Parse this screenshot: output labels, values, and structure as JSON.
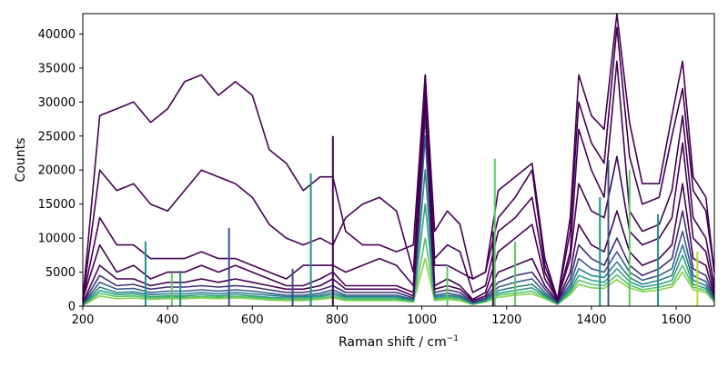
{
  "chart_data": {
    "type": "line",
    "title": "",
    "xlabel": "Raman shift / cm",
    "xlabel_superscript": "−1",
    "ylabel": "Counts",
    "xlim": [
      200,
      1690
    ],
    "ylim": [
      0,
      43000
    ],
    "x_ticks": [
      200,
      400,
      600,
      800,
      1000,
      1200,
      1400,
      1600
    ],
    "y_ticks": [
      0,
      5000,
      10000,
      15000,
      20000,
      25000,
      30000,
      35000,
      40000
    ],
    "grid": false,
    "legend": "none",
    "colormap": "viridis",
    "colors": {
      "dark": "#440154",
      "blue": "#3b528b",
      "teal": "#21918c",
      "green": "#5ec962",
      "yellow": "#b5de2b"
    },
    "x": [
      200,
      240,
      280,
      320,
      360,
      400,
      440,
      480,
      520,
      560,
      600,
      640,
      680,
      720,
      760,
      790,
      820,
      860,
      900,
      940,
      980,
      1008,
      1030,
      1060,
      1090,
      1120,
      1150,
      1180,
      1220,
      1260,
      1290,
      1320,
      1350,
      1370,
      1400,
      1430,
      1460,
      1490,
      1520,
      1560,
      1590,
      1615,
      1640,
      1670,
      1690
    ],
    "series": [
      {
        "values": [
          1000,
          28000,
          29000,
          30000,
          27000,
          29000,
          33000,
          34000,
          31000,
          33000,
          31000,
          23000,
          21000,
          17000,
          19000,
          19000,
          11000,
          9000,
          9000,
          8000,
          9000,
          34000,
          6000,
          6000,
          5000,
          4000,
          5000,
          17000,
          19000,
          21000,
          7000,
          1000,
          13000,
          34000,
          28000,
          26000,
          43000,
          27000,
          18000,
          18000,
          28000,
          36000,
          19000,
          16000,
          5000
        ]
      },
      {
        "values": [
          1000,
          20000,
          17000,
          18000,
          15000,
          14000,
          17000,
          20000,
          19000,
          18000,
          16000,
          12000,
          10000,
          9000,
          10000,
          9000,
          13000,
          15000,
          16000,
          14000,
          5000,
          34000,
          11000,
          14000,
          12000,
          4000,
          5000,
          13000,
          16000,
          20000,
          6000,
          1000,
          11000,
          30000,
          24000,
          21000,
          41000,
          22000,
          15000,
          16000,
          25000,
          32000,
          17000,
          14000,
          5000
        ]
      },
      {
        "values": [
          1000,
          13000,
          9000,
          9000,
          7000,
          7000,
          7000,
          8000,
          7000,
          7000,
          6000,
          5000,
          4000,
          6000,
          6000,
          6000,
          5000,
          6000,
          7000,
          6000,
          3000,
          33000,
          7000,
          9000,
          8000,
          2000,
          3000,
          11000,
          13000,
          16000,
          5000,
          1000,
          8000,
          26000,
          20000,
          16000,
          36000,
          14000,
          11000,
          12000,
          17000,
          28000,
          13000,
          10000,
          3000
        ]
      },
      {
        "values": [
          1000,
          9000,
          5000,
          6000,
          4000,
          5000,
          5000,
          6000,
          5000,
          6000,
          5000,
          4000,
          3000,
          3000,
          4000,
          5000,
          3000,
          3000,
          3000,
          3000,
          2000,
          32000,
          3000,
          4000,
          3000,
          1000,
          2000,
          8000,
          10000,
          12000,
          4000,
          1000,
          7000,
          18000,
          14000,
          13000,
          22000,
          11000,
          9000,
          10000,
          13000,
          24000,
          10000,
          8000,
          2000
        ]
      },
      {
        "values": [
          500,
          6000,
          4000,
          4000,
          3000,
          3500,
          3500,
          4000,
          3500,
          4000,
          3500,
          3000,
          2500,
          2500,
          3000,
          4000,
          2500,
          2500,
          2500,
          2500,
          1500,
          30000,
          2500,
          3000,
          2500,
          800,
          1500,
          5000,
          6000,
          7000,
          3000,
          800,
          5000,
          12000,
          9000,
          8000,
          14000,
          8000,
          6000,
          7000,
          9000,
          18000,
          7000,
          6000,
          1500
        ]
      },
      {
        "values": [
          400,
          4500,
          3000,
          3200,
          2500,
          2800,
          2800,
          3000,
          2800,
          3000,
          2800,
          2400,
          2000,
          2000,
          2400,
          3000,
          2000,
          2000,
          2000,
          2000,
          1200,
          28000,
          2000,
          2400,
          2000,
          600,
          1200,
          3500,
          4500,
          5000,
          2500,
          600,
          4000,
          9000,
          7000,
          6000,
          10000,
          6000,
          4500,
          5500,
          7000,
          14000,
          5500,
          4500,
          1200
        ]
      },
      {
        "values": [
          300,
          3500,
          2500,
          2600,
          2000,
          2200,
          2200,
          2400,
          2200,
          2400,
          2200,
          1900,
          1600,
          1600,
          1900,
          2400,
          1600,
          1600,
          1600,
          1600,
          1000,
          25000,
          1600,
          1900,
          1600,
          500,
          1000,
          2800,
          3500,
          4000,
          2000,
          500,
          3200,
          7000,
          5500,
          5000,
          8000,
          5000,
          3800,
          4500,
          5500,
          11000,
          4500,
          3600,
          1000
        ]
      },
      {
        "values": [
          250,
          2800,
          2000,
          2100,
          1700,
          1800,
          1800,
          2000,
          1800,
          2000,
          1800,
          1600,
          1400,
          1400,
          1600,
          2000,
          1400,
          1400,
          1400,
          1400,
          900,
          20000,
          1400,
          1600,
          1400,
          400,
          900,
          2300,
          2800,
          3200,
          1700,
          400,
          2700,
          5500,
          4500,
          4200,
          6500,
          4200,
          3200,
          3800,
          4500,
          9000,
          3800,
          3000,
          900
        ]
      },
      {
        "values": [
          200,
          2300,
          1700,
          1800,
          1400,
          1500,
          1500,
          1700,
          1500,
          1700,
          1500,
          1300,
          1200,
          1200,
          1400,
          1700,
          1200,
          1200,
          1200,
          1200,
          800,
          15000,
          1200,
          1400,
          1200,
          350,
          800,
          1900,
          2300,
          2700,
          1500,
          350,
          2300,
          4500,
          3800,
          3500,
          5500,
          3600,
          2800,
          3200,
          3800,
          7500,
          3200,
          2600,
          800
        ]
      },
      {
        "values": [
          150,
          1900,
          1400,
          1500,
          1200,
          1300,
          1300,
          1400,
          1300,
          1400,
          1300,
          1100,
          1000,
          1000,
          1200,
          1400,
          1000,
          1000,
          1000,
          1000,
          700,
          10000,
          1000,
          1200,
          1000,
          300,
          700,
          1600,
          1900,
          2200,
          1300,
          300,
          2000,
          3800,
          3200,
          3000,
          4600,
          3100,
          2400,
          2800,
          3200,
          6000,
          2800,
          2300,
          700
        ]
      },
      {
        "values": [
          100,
          1500,
          1100,
          1200,
          1000,
          1100,
          1100,
          1200,
          1100,
          1200,
          1100,
          900,
          800,
          800,
          1000,
          1200,
          800,
          800,
          800,
          800,
          600,
          7000,
          800,
          1000,
          800,
          250,
          600,
          1300,
          1600,
          1800,
          1100,
          250,
          1700,
          3200,
          2700,
          2600,
          3900,
          2700,
          2100,
          2400,
          2800,
          5000,
          2400,
          2000,
          600
        ]
      }
    ],
    "spikes": [
      {
        "x": 348,
        "value": 9500,
        "color_key": "teal"
      },
      {
        "x": 410,
        "value": 4800,
        "color_key": "green"
      },
      {
        "x": 430,
        "value": 5200,
        "color_key": "teal"
      },
      {
        "x": 545,
        "value": 11500,
        "color_key": "blue"
      },
      {
        "x": 695,
        "value": 5500,
        "color_key": "blue"
      },
      {
        "x": 738,
        "value": 19500,
        "color_key": "teal"
      },
      {
        "x": 790,
        "value": 25000,
        "color_key": "dark"
      },
      {
        "x": 1060,
        "value": 6000,
        "color_key": "green"
      },
      {
        "x": 1168,
        "value": 11000,
        "color_key": "dark"
      },
      {
        "x": 1172,
        "value": 21700,
        "color_key": "green"
      },
      {
        "x": 1220,
        "value": 9500,
        "color_key": "green"
      },
      {
        "x": 1420,
        "value": 16000,
        "color_key": "teal"
      },
      {
        "x": 1440,
        "value": 21500,
        "color_key": "blue"
      },
      {
        "x": 1490,
        "value": 20000,
        "color_key": "green"
      },
      {
        "x": 1557,
        "value": 13500,
        "color_key": "teal"
      },
      {
        "x": 1650,
        "value": 8000,
        "color_key": "yellow"
      }
    ]
  }
}
